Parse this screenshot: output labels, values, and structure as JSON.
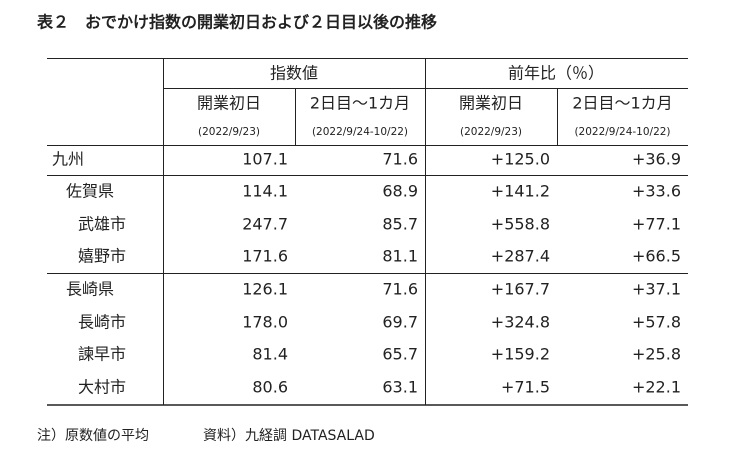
{
  "title": "表２　おでかけ指数の開業初日および２日目以後の推移",
  "header": {
    "groups": [
      "指数値",
      "前年比（％）"
    ],
    "columns": [
      "開業初日",
      "2日目〜1カ月",
      "開業初日",
      "2日目〜1カ月"
    ],
    "periods": [
      "(2022/9/23)",
      "(2022/9/24-10/22)",
      "(2022/9/23)",
      "(2022/9/24-10/22)"
    ]
  },
  "table": {
    "rows": [
      [
        "九州",
        "107.1",
        "71.6",
        "+125.0",
        "+36.9"
      ],
      [
        "佐賀県",
        "114.1",
        "68.9",
        "+141.2",
        "+33.6"
      ],
      [
        "武雄市",
        "247.7",
        "85.7",
        "+558.8",
        "+77.1"
      ],
      [
        "嬉野市",
        "171.6",
        "81.1",
        "+287.4",
        "+66.5"
      ],
      [
        "長崎県",
        "126.1",
        "71.6",
        "+167.7",
        "+37.1"
      ],
      [
        "長崎市",
        "178.0",
        "69.7",
        "+324.8",
        "+57.8"
      ],
      [
        "諫早市",
        "81.4",
        "65.7",
        "+159.2",
        "+25.8"
      ],
      [
        "大村市",
        "80.6",
        "63.1",
        "+71.5",
        "+22.1"
      ]
    ]
  },
  "footnote": {
    "note": "注）原数値の平均",
    "source": "資料）九経調 DATASALAD"
  }
}
